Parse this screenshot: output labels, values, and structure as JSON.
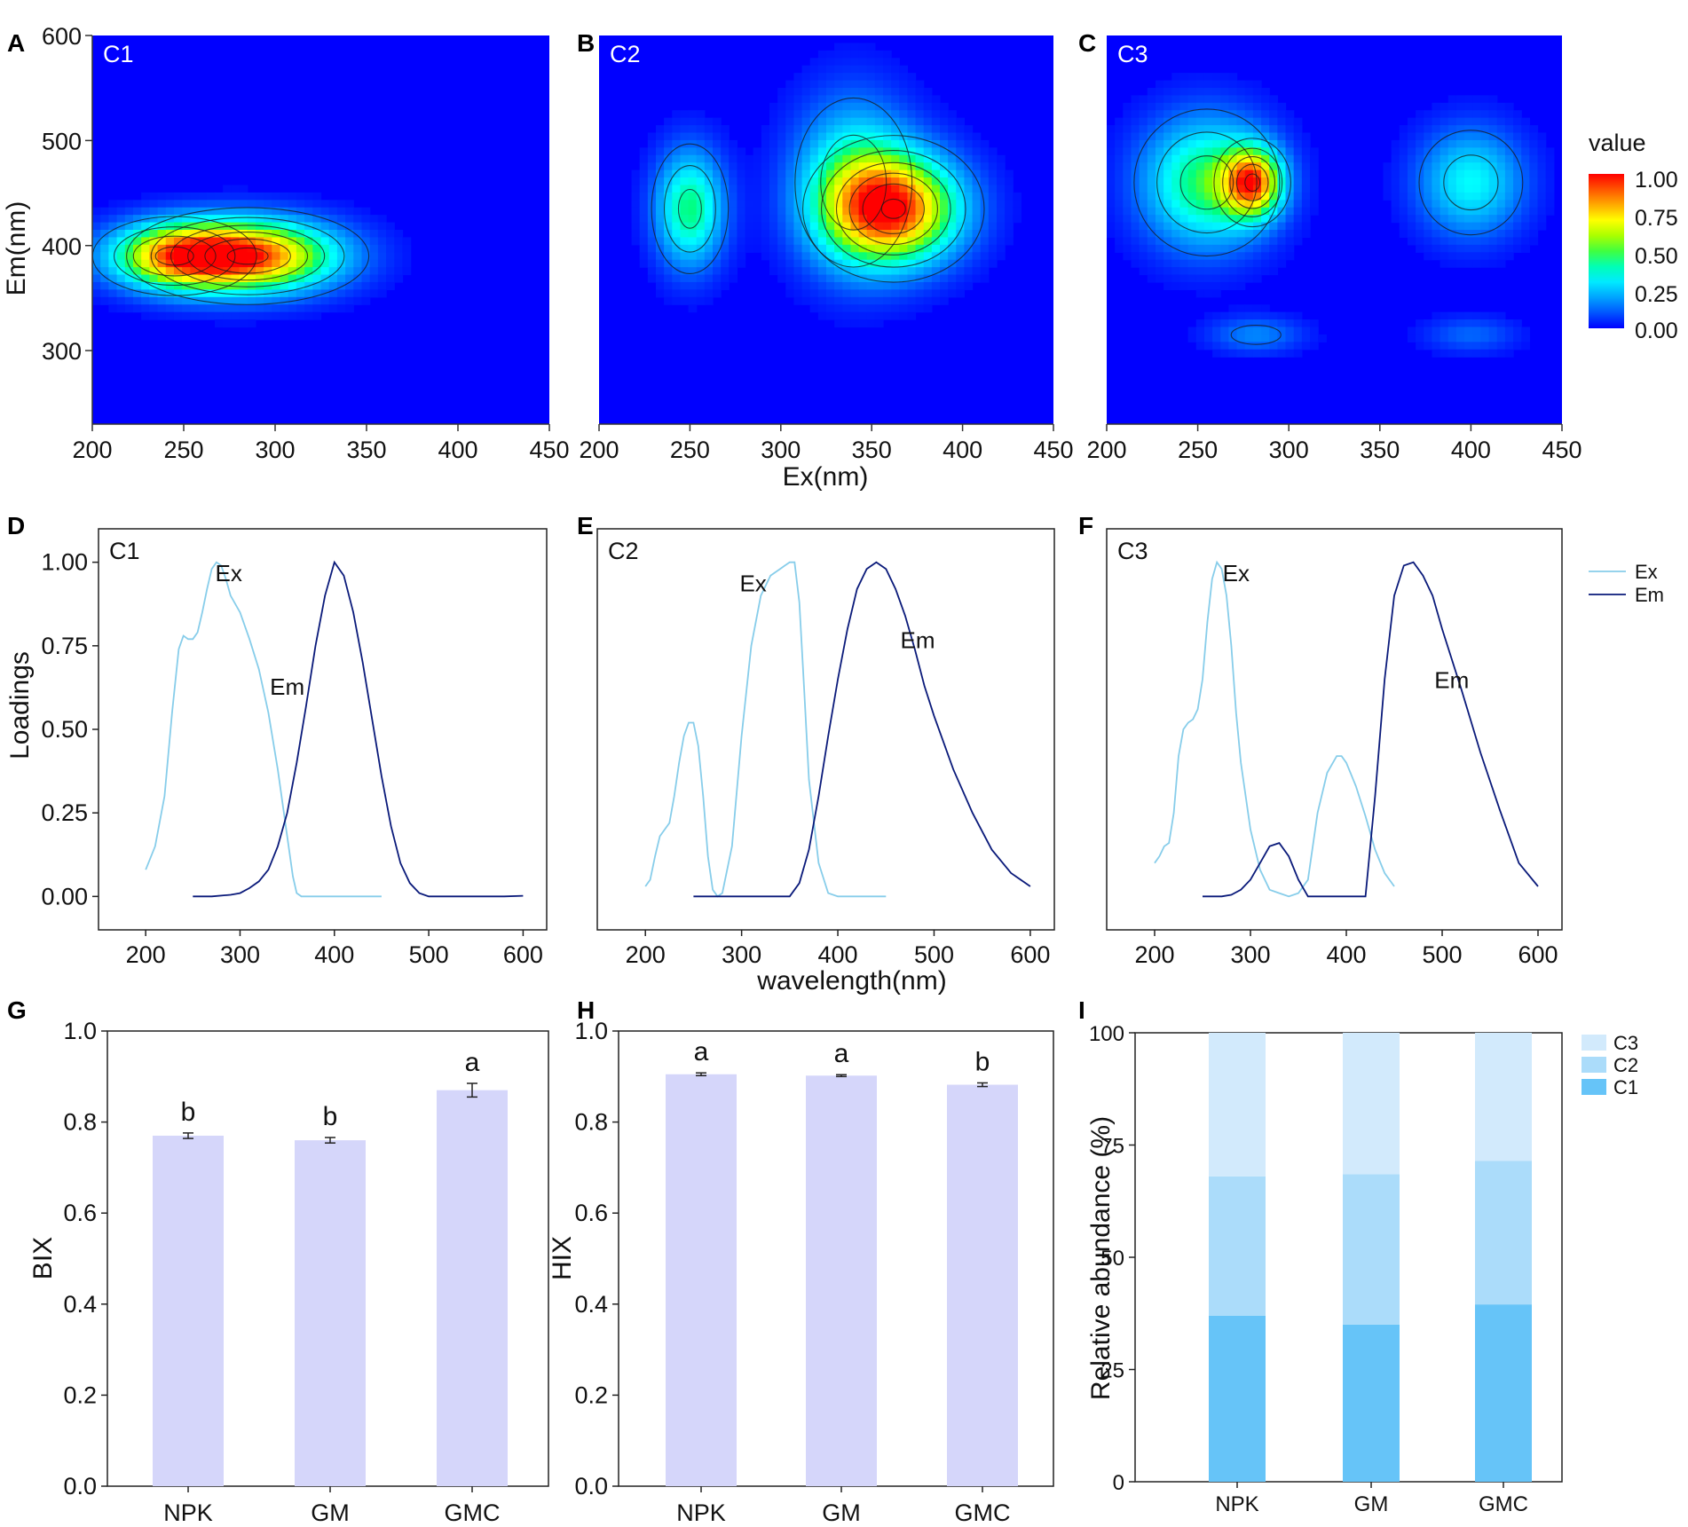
{
  "panel_letters": [
    "A",
    "B",
    "C",
    "D",
    "E",
    "F",
    "G",
    "H",
    "I"
  ],
  "colors": {
    "jet": [
      "#0000ff",
      "#0080ff",
      "#00ffff",
      "#00ff80",
      "#80ff00",
      "#ffff00",
      "#ff8000",
      "#ff0000"
    ],
    "ex_line": "#87cdea",
    "em_line": "#0a1a7a",
    "bar_fill": "#d5d6fa",
    "stack": {
      "C1": "#66c4f8",
      "C2": "#abdcfa",
      "C3": "#d2eafc"
    }
  },
  "chart_data": [
    {
      "panel": "A",
      "type": "heatmap",
      "title": "C1",
      "xlabel": "",
      "ylabel": "Em(nm)",
      "xlim": [
        200,
        450
      ],
      "ylim": [
        230,
        600
      ],
      "xticks": [
        "200",
        "250",
        "300",
        "350",
        "400",
        "450"
      ],
      "yticks": [
        "300",
        "400",
        "500",
        "600"
      ],
      "peaks": [
        {
          "ex": 285,
          "em": 390,
          "sx": 33,
          "sy": 23,
          "amp": 0.9
        },
        {
          "ex": 245,
          "em": 390,
          "sx": 25,
          "sy": 21,
          "amp": 0.6
        }
      ]
    },
    {
      "panel": "B",
      "type": "heatmap",
      "title": "C2",
      "xlabel": "Ex(nm)",
      "ylabel": "",
      "xlim": [
        200,
        450
      ],
      "ylim": [
        230,
        600
      ],
      "xticks": [
        "200",
        "250",
        "300",
        "350",
        "400",
        "450"
      ],
      "yticks": [],
      "peaks": [
        {
          "ex": 250,
          "em": 435,
          "sx": 13,
          "sy": 38,
          "amp": 0.45
        },
        {
          "ex": 362,
          "em": 435,
          "sx": 25,
          "sy": 35,
          "amp": 0.88
        },
        {
          "ex": 340,
          "em": 460,
          "sx": 22,
          "sy": 55,
          "amp": 0.35
        }
      ]
    },
    {
      "panel": "C",
      "type": "heatmap",
      "title": "C3",
      "xlabel": "",
      "ylabel": "",
      "xlim": [
        200,
        450
      ],
      "ylim": [
        230,
        600
      ],
      "xticks": [
        "200",
        "250",
        "300",
        "350",
        "400",
        "450"
      ],
      "yticks": [],
      "colorbar": {
        "title": "value",
        "ticks": [
          "1.00",
          "0.75",
          "0.50",
          "0.25",
          "0.00"
        ]
      },
      "peaks": [
        {
          "ex": 280,
          "em": 460,
          "sx": 11,
          "sy": 22,
          "amp": 0.75
        },
        {
          "ex": 255,
          "em": 460,
          "sx": 24,
          "sy": 42,
          "amp": 0.48
        },
        {
          "ex": 400,
          "em": 460,
          "sx": 20,
          "sy": 35,
          "amp": 0.33
        },
        {
          "ex": 282,
          "em": 315,
          "sx": 18,
          "sy": 12,
          "amp": 0.16
        },
        {
          "ex": 400,
          "em": 315,
          "sx": 18,
          "sy": 12,
          "amp": 0.12
        }
      ]
    },
    {
      "panel": "D",
      "type": "line",
      "title": "C1",
      "xlabel": "",
      "ylabel": "Loadings",
      "xlim": [
        150,
        625
      ],
      "ylim": [
        -0.1,
        1.1
      ],
      "xticks": [
        "200",
        "300",
        "400",
        "500",
        "600"
      ],
      "yticks": [
        "0.00",
        "0.25",
        "0.50",
        "0.75",
        "1.00"
      ],
      "series": [
        {
          "name": "Ex",
          "label_at": [
            288,
            0.97
          ],
          "x": [
            200,
            210,
            220,
            228,
            235,
            240,
            245,
            250,
            255,
            260,
            265,
            270,
            275,
            280,
            285,
            290,
            300,
            310,
            320,
            330,
            340,
            350,
            356,
            360,
            365,
            370,
            380,
            400,
            420,
            450
          ],
          "y": [
            0.08,
            0.15,
            0.3,
            0.55,
            0.74,
            0.78,
            0.77,
            0.77,
            0.79,
            0.85,
            0.92,
            0.98,
            1.0,
            0.99,
            0.95,
            0.9,
            0.85,
            0.77,
            0.68,
            0.55,
            0.38,
            0.18,
            0.06,
            0.01,
            0,
            0,
            0,
            0,
            0,
            0
          ]
        },
        {
          "name": "Em",
          "label_at": [
            350,
            0.63
          ],
          "x": [
            250,
            270,
            290,
            300,
            310,
            320,
            330,
            340,
            350,
            360,
            370,
            380,
            390,
            400,
            410,
            420,
            430,
            440,
            450,
            460,
            470,
            480,
            490,
            500,
            520,
            550,
            580,
            600
          ],
          "y": [
            0,
            0,
            0.005,
            0.01,
            0.025,
            0.045,
            0.08,
            0.15,
            0.25,
            0.4,
            0.57,
            0.75,
            0.9,
            1.0,
            0.96,
            0.85,
            0.7,
            0.53,
            0.36,
            0.21,
            0.1,
            0.04,
            0.01,
            0,
            0,
            0,
            0,
            0.002
          ]
        }
      ]
    },
    {
      "panel": "E",
      "type": "line",
      "title": "C2",
      "xlabel": "wavelength(nm)",
      "ylabel": "",
      "xlim": [
        150,
        625
      ],
      "ylim": [
        -0.1,
        1.1
      ],
      "xticks": [
        "200",
        "300",
        "400",
        "500",
        "600"
      ],
      "yticks": [],
      "series": [
        {
          "name": "Ex",
          "label_at": [
            312,
            0.94
          ],
          "x": [
            200,
            205,
            210,
            215,
            220,
            225,
            230,
            235,
            240,
            245,
            250,
            255,
            260,
            265,
            270,
            275,
            280,
            290,
            300,
            310,
            320,
            330,
            340,
            345,
            350,
            355,
            360,
            365,
            370,
            380,
            390,
            400,
            420,
            450
          ],
          "y": [
            0.03,
            0.05,
            0.12,
            0.18,
            0.2,
            0.22,
            0.3,
            0.4,
            0.48,
            0.52,
            0.52,
            0.45,
            0.3,
            0.12,
            0.02,
            0,
            0.01,
            0.15,
            0.48,
            0.75,
            0.9,
            0.96,
            0.98,
            0.99,
            1.0,
            1.0,
            0.88,
            0.62,
            0.35,
            0.1,
            0.01,
            0,
            0,
            0
          ]
        },
        {
          "name": "Em",
          "label_at": [
            483,
            0.77
          ],
          "x": [
            250,
            300,
            350,
            360,
            370,
            380,
            390,
            400,
            410,
            420,
            430,
            440,
            450,
            460,
            470,
            480,
            490,
            500,
            520,
            540,
            560,
            580,
            600
          ],
          "y": [
            0,
            0,
            0,
            0.04,
            0.14,
            0.3,
            0.48,
            0.65,
            0.8,
            0.92,
            0.98,
            1.0,
            0.98,
            0.92,
            0.84,
            0.74,
            0.63,
            0.54,
            0.38,
            0.25,
            0.14,
            0.07,
            0.03
          ]
        }
      ]
    },
    {
      "panel": "F",
      "type": "line",
      "title": "C3",
      "xlabel": "",
      "ylabel": "",
      "xlim": [
        150,
        625
      ],
      "ylim": [
        -0.1,
        1.1
      ],
      "xticks": [
        "200",
        "300",
        "400",
        "500",
        "600"
      ],
      "yticks": [],
      "legend": [
        "Ex",
        "Em"
      ],
      "series": [
        {
          "name": "Ex",
          "label_at": [
            285,
            0.97
          ],
          "x": [
            200,
            205,
            210,
            215,
            220,
            225,
            230,
            235,
            240,
            245,
            250,
            255,
            260,
            265,
            270,
            275,
            280,
            285,
            290,
            300,
            310,
            320,
            330,
            340,
            350,
            360,
            370,
            380,
            390,
            395,
            400,
            410,
            420,
            430,
            440,
            450
          ],
          "y": [
            0.1,
            0.12,
            0.15,
            0.16,
            0.25,
            0.42,
            0.5,
            0.52,
            0.53,
            0.56,
            0.65,
            0.82,
            0.95,
            1.0,
            0.98,
            0.9,
            0.75,
            0.55,
            0.4,
            0.2,
            0.08,
            0.02,
            0.01,
            0,
            0.01,
            0.05,
            0.25,
            0.37,
            0.42,
            0.42,
            0.4,
            0.33,
            0.24,
            0.14,
            0.07,
            0.03
          ]
        },
        {
          "name": "Em",
          "label_at": [
            510,
            0.65
          ],
          "x": [
            250,
            270,
            280,
            290,
            300,
            310,
            320,
            330,
            340,
            350,
            360,
            380,
            400,
            420,
            430,
            440,
            450,
            460,
            470,
            480,
            490,
            500,
            520,
            540,
            560,
            580,
            600
          ],
          "y": [
            0,
            0,
            0.005,
            0.02,
            0.05,
            0.1,
            0.15,
            0.16,
            0.12,
            0.05,
            0,
            0,
            0,
            0,
            0.3,
            0.65,
            0.9,
            0.99,
            1.0,
            0.96,
            0.9,
            0.8,
            0.62,
            0.43,
            0.26,
            0.1,
            0.03
          ]
        }
      ]
    },
    {
      "panel": "G",
      "type": "bar",
      "title": "",
      "xlabel": "",
      "ylabel": "BIX",
      "ylim": [
        0,
        1.0
      ],
      "yticks": [
        "0.0",
        "0.2",
        "0.4",
        "0.6",
        "0.8",
        "1.0"
      ],
      "categories": [
        "NPK",
        "GM",
        "GMC"
      ],
      "values": [
        0.77,
        0.76,
        0.87
      ],
      "errors": [
        0.006,
        0.006,
        0.015
      ],
      "letters": [
        "b",
        "b",
        "a"
      ]
    },
    {
      "panel": "H",
      "type": "bar",
      "title": "",
      "xlabel": "",
      "ylabel": "HIX",
      "ylim": [
        0,
        1.0
      ],
      "yticks": [
        "0.0",
        "0.2",
        "0.4",
        "0.6",
        "0.8",
        "1.0"
      ],
      "categories": [
        "NPK",
        "GM",
        "GMC"
      ],
      "values": [
        0.905,
        0.902,
        0.882
      ],
      "errors": [
        0.003,
        0.002,
        0.004
      ],
      "letters": [
        "a",
        "a",
        "b"
      ]
    },
    {
      "panel": "I",
      "type": "bar",
      "stacked": true,
      "title": "",
      "xlabel": "",
      "ylabel": "Relative abundance (%)",
      "ylim": [
        0,
        100
      ],
      "yticks": [
        "0",
        "25",
        "50",
        "75",
        "100"
      ],
      "categories": [
        "NPK",
        "GM",
        "GMC"
      ],
      "legend": [
        "C3",
        "C2",
        "C1"
      ],
      "series": [
        {
          "name": "C1",
          "values": [
            37,
            35,
            39.5
          ]
        },
        {
          "name": "C2",
          "values": [
            31,
            33.5,
            32
          ]
        },
        {
          "name": "C3",
          "values": [
            32,
            31.5,
            28.5
          ]
        }
      ]
    }
  ]
}
